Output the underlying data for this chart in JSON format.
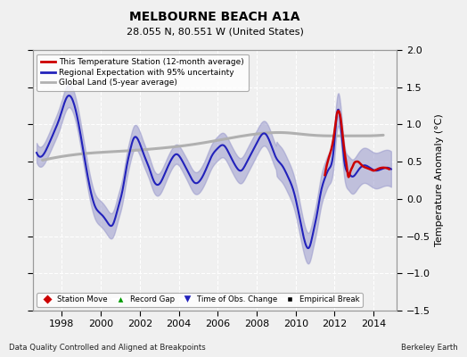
{
  "title": "MELBOURNE BEACH A1A",
  "subtitle": "28.055 N, 80.551 W (United States)",
  "ylabel": "Temperature Anomaly (°C)",
  "footer_left": "Data Quality Controlled and Aligned at Breakpoints",
  "footer_right": "Berkeley Earth",
  "ylim": [
    -1.5,
    2.0
  ],
  "xlim_start": 1996.5,
  "xlim_end": 2015.2,
  "xticks": [
    1998,
    2000,
    2002,
    2004,
    2006,
    2008,
    2010,
    2012,
    2014
  ],
  "yticks": [
    -1.5,
    -1.0,
    -0.5,
    0.0,
    0.5,
    1.0,
    1.5,
    2.0
  ],
  "bg_color": "#f0f0f0",
  "plot_bg_color": "#f0f0f0",
  "grid_color": "#ffffff",
  "blue_line_color": "#2222bb",
  "blue_fill_color": "#9999cc",
  "red_line_color": "#cc0000",
  "gray_line_color": "#b0b0b0",
  "legend_items": [
    {
      "label": "This Temperature Station (12-month average)",
      "color": "#cc0000",
      "lw": 2
    },
    {
      "label": "Regional Expectation with 95% uncertainty",
      "color": "#2222bb",
      "lw": 2
    },
    {
      "label": "Global Land (5-year average)",
      "color": "#b0b0b0",
      "lw": 2
    }
  ],
  "bottom_legend": [
    {
      "label": "Station Move",
      "color": "#cc0000",
      "marker": "D"
    },
    {
      "label": "Record Gap",
      "color": "#009900",
      "marker": "^"
    },
    {
      "label": "Time of Obs. Change",
      "color": "#2222bb",
      "marker": "v"
    },
    {
      "label": "Empirical Break",
      "color": "#000000",
      "marker": "s"
    }
  ]
}
